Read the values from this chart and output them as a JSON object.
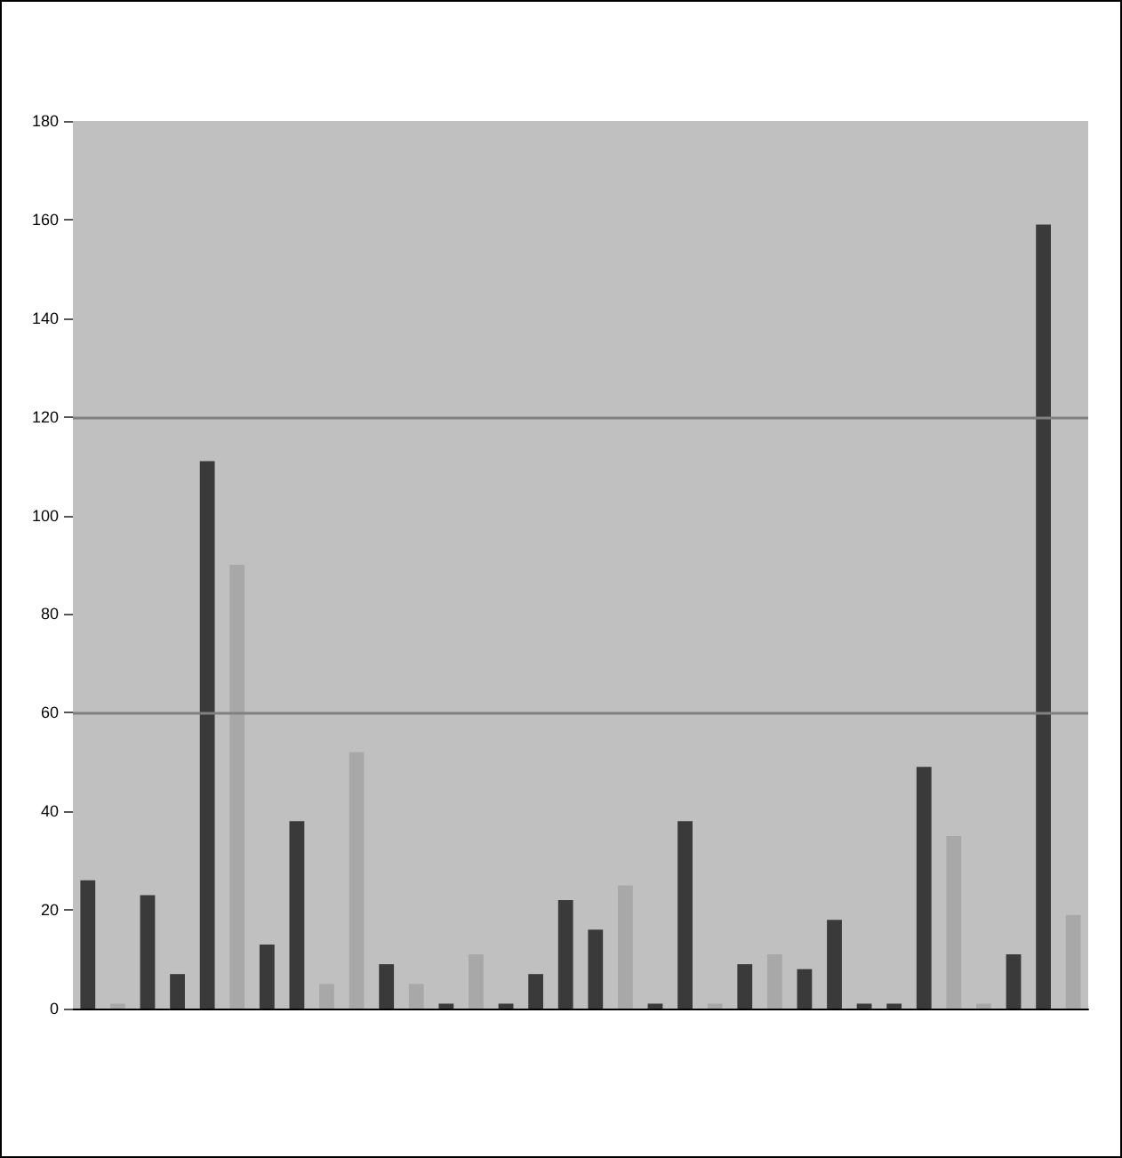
{
  "chart_data": {
    "type": "bar",
    "categories": [
      null,
      null,
      null,
      null,
      null,
      null,
      null,
      null,
      null,
      null,
      null,
      null,
      null,
      null,
      null,
      null,
      null,
      null,
      null,
      null,
      null,
      null,
      null,
      null,
      null,
      null,
      null,
      null,
      null,
      null,
      null,
      null,
      null,
      null
    ],
    "values": [
      26,
      1,
      23,
      7,
      111,
      90,
      13,
      38,
      5,
      52,
      9,
      5,
      1,
      11,
      1,
      7,
      22,
      16,
      25,
      1,
      38,
      1,
      9,
      11,
      8,
      18,
      1,
      1,
      49,
      35,
      1,
      11,
      159,
      19
    ],
    "colors": [
      "#3a3a3a",
      "#a8a8a8",
      "#3a3a3a",
      "#3a3a3a",
      "#3a3a3a",
      "#a8a8a8",
      "#3a3a3a",
      "#3a3a3a",
      "#a8a8a8",
      "#a8a8a8",
      "#3a3a3a",
      "#a8a8a8",
      "#3a3a3a",
      "#a8a8a8",
      "#3a3a3a",
      "#3a3a3a",
      "#3a3a3a",
      "#3a3a3a",
      "#a8a8a8",
      "#3a3a3a",
      "#3a3a3a",
      "#a8a8a8",
      "#3a3a3a",
      "#a8a8a8",
      "#3a3a3a",
      "#3a3a3a",
      "#3a3a3a",
      "#3a3a3a",
      "#3a3a3a",
      "#a8a8a8",
      "#a8a8a8",
      "#3a3a3a",
      "#3a3a3a",
      "#a8a8a8"
    ],
    "ylim": [
      0,
      180
    ],
    "yticks": [
      0,
      20,
      40,
      60,
      80,
      100,
      120,
      140,
      160,
      180
    ],
    "ref_lines": [
      {
        "axis": "y",
        "value": 60,
        "color": "#808080"
      },
      {
        "axis": "y",
        "value": 120,
        "color": "#808080"
      }
    ],
    "grid": false
  }
}
